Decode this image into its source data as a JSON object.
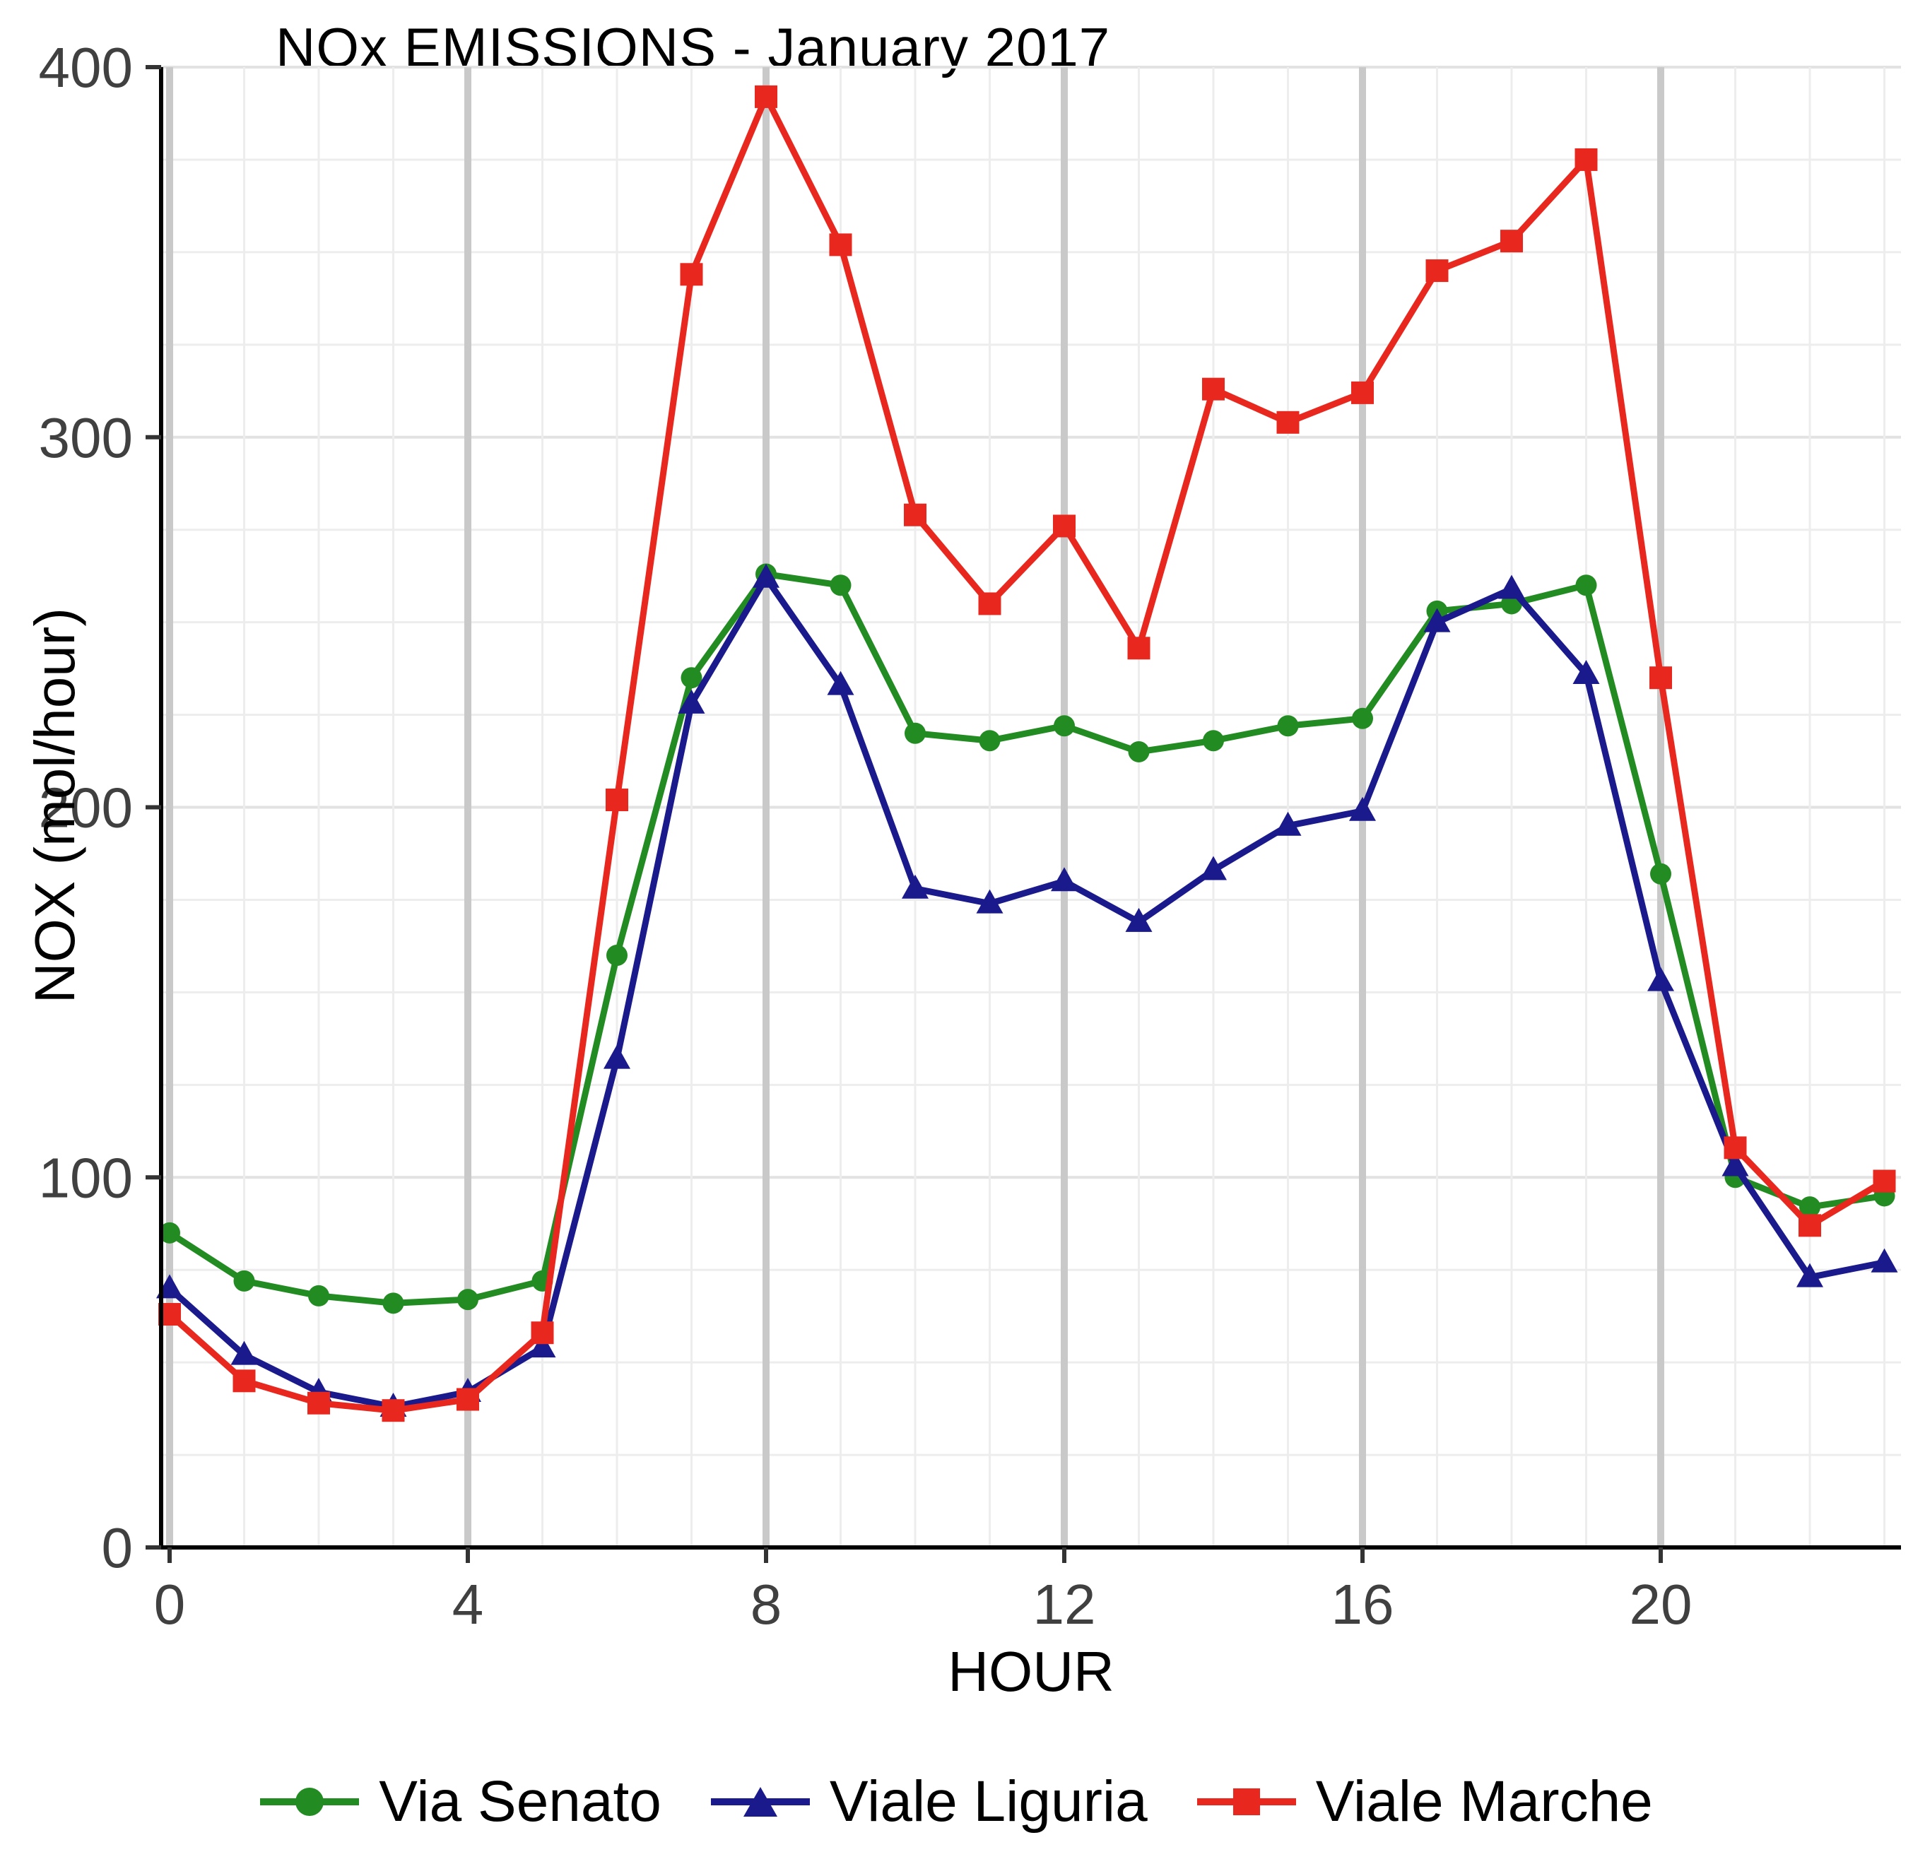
{
  "chart": {
    "title": "NOx EMISSIONS - January 2017",
    "xlabel": "HOUR",
    "ylabel": "NOX (mol/hour)"
  },
  "chart_data": {
    "type": "line",
    "title": "NOx EMISSIONS - January 2017",
    "xlabel": "HOUR",
    "ylabel": "NOX (mol/hour)",
    "x": [
      0,
      1,
      2,
      3,
      4,
      5,
      6,
      7,
      8,
      9,
      10,
      11,
      12,
      13,
      14,
      15,
      16,
      17,
      18,
      19,
      20,
      21,
      22,
      23
    ],
    "xlim": [
      0,
      23
    ],
    "ylim": [
      0,
      400
    ],
    "x_ticks": [
      0,
      4,
      8,
      12,
      16,
      20
    ],
    "y_ticks": [
      0,
      100,
      200,
      300,
      400
    ],
    "grid": true,
    "legend_position": "bottom",
    "series": [
      {
        "name": "Via Senato",
        "color": "#228B22",
        "marker": "circle",
        "values": [
          85,
          72,
          68,
          66,
          67,
          72,
          160,
          235,
          263,
          260,
          220,
          218,
          222,
          215,
          218,
          222,
          224,
          253,
          255,
          260,
          182,
          100,
          92,
          95
        ]
      },
      {
        "name": "Viale Liguria",
        "color": "#1A1A8C",
        "marker": "triangle",
        "values": [
          70,
          52,
          42,
          38,
          42,
          54,
          132,
          228,
          262,
          233,
          178,
          174,
          180,
          169,
          183,
          195,
          199,
          250,
          259,
          236,
          153,
          103,
          73,
          77
        ]
      },
      {
        "name": "Viale Marche",
        "color": "#E8281E",
        "marker": "square",
        "values": [
          63,
          45,
          39,
          37,
          40,
          58,
          202,
          344,
          392,
          352,
          279,
          255,
          276,
          243,
          313,
          304,
          312,
          345,
          353,
          375,
          235,
          108,
          87,
          99
        ]
      }
    ]
  }
}
